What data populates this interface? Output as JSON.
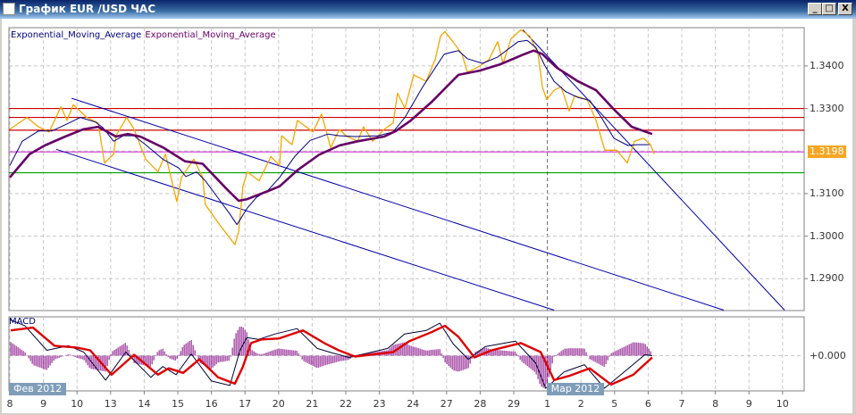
{
  "window": {
    "title": "График EUR /USD  ЧАС",
    "buttons": {
      "minimize": "_",
      "maximize": "□",
      "close": "X"
    }
  },
  "legend": [
    {
      "label": "Exponential_Moving_Average",
      "color": "#000080"
    },
    {
      "label": "Exponential_Moving_Average",
      "color": "#660066"
    }
  ],
  "chart_data": [
    {
      "type": "line",
      "symbol": "EUR /USD",
      "timeframe": "ЧАС",
      "x_ticks": [
        "8",
        "9",
        "10",
        "13",
        "14",
        "15",
        "16",
        "17",
        "20",
        "21",
        "22",
        "23",
        "24",
        "27",
        "28",
        "29",
        "1",
        "2",
        "5",
        "6",
        "7",
        "8",
        "9",
        "10"
      ],
      "month_tags": [
        {
          "label": "Фев 2012",
          "at_tick": 0
        },
        {
          "label": "Мар 2012",
          "at_tick": 16
        }
      ],
      "y_ticks": [
        "1.3400",
        "1.3300",
        "1.3100",
        "1.3000",
        "1.2900"
      ],
      "ylim": [
        1.2825,
        1.349
      ],
      "grid": true,
      "current_price": "1.3198",
      "colors": {
        "price": "#f5a600",
        "ema_fast": "#000080",
        "ema_slow": "#660066",
        "resistance": "#cc0000",
        "support": "#00a000",
        "current": "#cc33cc",
        "trend": "#0000aa"
      },
      "horizontal_lines": [
        {
          "kind": "resistance",
          "price": 1.33
        },
        {
          "kind": "resistance",
          "price": 1.3279
        },
        {
          "kind": "resistance",
          "price": 1.3249
        },
        {
          "kind": "current",
          "price": 1.3198
        },
        {
          "kind": "support",
          "price": 1.3149
        }
      ],
      "trend_lines": [
        {
          "from": [
            1.84,
            1.3324
          ],
          "to": [
            21.25,
            1.2826
          ]
        },
        {
          "from": [
            1.38,
            1.3204
          ],
          "to": [
            16.2,
            1.2826
          ]
        },
        {
          "from": [
            15.27,
            1.3485
          ],
          "to": [
            23.06,
            1.2826
          ]
        }
      ],
      "series": [
        {
          "key": "price",
          "points": [
            [
              0,
              1.3251
            ],
            [
              0.51,
              1.3279
            ],
            [
              0.85,
              1.3257
            ],
            [
              1.17,
              1.3245
            ],
            [
              1.52,
              1.3304
            ],
            [
              1.7,
              1.3272
            ],
            [
              1.89,
              1.3309
            ],
            [
              2.29,
              1.3279
            ],
            [
              2.63,
              1.3266
            ],
            [
              2.82,
              1.3172
            ],
            [
              3.09,
              1.3193
            ],
            [
              3.16,
              1.3236
            ],
            [
              3.48,
              1.3279
            ],
            [
              3.7,
              1.3251
            ],
            [
              4.04,
              1.3181
            ],
            [
              4.41,
              1.3151
            ],
            [
              4.63,
              1.3193
            ],
            [
              4.97,
              1.3081
            ],
            [
              5.11,
              1.3138
            ],
            [
              5.48,
              1.3181
            ],
            [
              5.74,
              1.3138
            ],
            [
              5.82,
              1.3074
            ],
            [
              6.28,
              1.3023
            ],
            [
              6.7,
              1.298
            ],
            [
              6.81,
              1.301
            ],
            [
              6.94,
              1.3117
            ],
            [
              7.07,
              1.3151
            ],
            [
              7.42,
              1.313
            ],
            [
              7.77,
              1.3187
            ],
            [
              8.03,
              1.3166
            ],
            [
              8.09,
              1.3236
            ],
            [
              8.4,
              1.3215
            ],
            [
              8.56,
              1.3272
            ],
            [
              9.02,
              1.3245
            ],
            [
              9.28,
              1.3287
            ],
            [
              9.55,
              1.3208
            ],
            [
              9.81,
              1.3251
            ],
            [
              10.0,
              1.3236
            ],
            [
              10.35,
              1.3223
            ],
            [
              10.53,
              1.3257
            ],
            [
              10.8,
              1.3223
            ],
            [
              11.14,
              1.3251
            ],
            [
              11.41,
              1.3266
            ],
            [
              11.54,
              1.3336
            ],
            [
              11.76,
              1.33
            ],
            [
              12.02,
              1.3379
            ],
            [
              12.39,
              1.3364
            ],
            [
              12.66,
              1.3415
            ],
            [
              12.82,
              1.347
            ],
            [
              12.95,
              1.3481
            ],
            [
              13.19,
              1.3457
            ],
            [
              13.46,
              1.3428
            ],
            [
              13.62,
              1.3385
            ],
            [
              13.99,
              1.34
            ],
            [
              14.26,
              1.3415
            ],
            [
              14.52,
              1.3457
            ],
            [
              14.68,
              1.3406
            ],
            [
              14.92,
              1.3464
            ],
            [
              15.21,
              1.3485
            ],
            [
              15.48,
              1.347
            ],
            [
              15.72,
              1.3428
            ],
            [
              15.85,
              1.3351
            ],
            [
              15.98,
              1.3321
            ],
            [
              16.2,
              1.3343
            ],
            [
              16.41,
              1.3351
            ],
            [
              16.65,
              1.3294
            ],
            [
              16.81,
              1.333
            ],
            [
              17.18,
              1.3321
            ],
            [
              17.45,
              1.3272
            ],
            [
              17.71,
              1.3202
            ],
            [
              18.06,
              1.3202
            ],
            [
              18.38,
              1.3172
            ],
            [
              18.59,
              1.3223
            ],
            [
              18.86,
              1.323
            ],
            [
              19.07,
              1.3215
            ],
            [
              19.18,
              1.3193
            ]
          ]
        },
        {
          "key": "ema_fast",
          "points": [
            [
              0,
              1.3166
            ],
            [
              0.37,
              1.3223
            ],
            [
              0.85,
              1.3247
            ],
            [
              1.25,
              1.3247
            ],
            [
              1.76,
              1.3266
            ],
            [
              2.1,
              1.3279
            ],
            [
              2.55,
              1.3268
            ],
            [
              2.77,
              1.3255
            ],
            [
              3.09,
              1.3223
            ],
            [
              3.38,
              1.3236
            ],
            [
              3.7,
              1.3236
            ],
            [
              4.04,
              1.3215
            ],
            [
              4.55,
              1.3181
            ],
            [
              5.03,
              1.316
            ],
            [
              5.24,
              1.314
            ],
            [
              5.56,
              1.3151
            ],
            [
              5.82,
              1.313
            ],
            [
              6.28,
              1.3081
            ],
            [
              6.54,
              1.3053
            ],
            [
              6.76,
              1.3027
            ],
            [
              7.07,
              1.3066
            ],
            [
              7.34,
              1.3091
            ],
            [
              7.69,
              1.3108
            ],
            [
              8.03,
              1.3138
            ],
            [
              8.48,
              1.3187
            ],
            [
              8.94,
              1.3225
            ],
            [
              9.47,
              1.324
            ],
            [
              9.81,
              1.3236
            ],
            [
              10.27,
              1.3234
            ],
            [
              10.96,
              1.3236
            ],
            [
              11.41,
              1.3245
            ],
            [
              11.76,
              1.3279
            ],
            [
              12.29,
              1.3351
            ],
            [
              12.93,
              1.3428
            ],
            [
              13.35,
              1.3436
            ],
            [
              13.62,
              1.3417
            ],
            [
              14.07,
              1.3406
            ],
            [
              14.52,
              1.3421
            ],
            [
              15.13,
              1.3457
            ],
            [
              15.4,
              1.346
            ],
            [
              15.66,
              1.3443
            ],
            [
              15.93,
              1.34
            ],
            [
              16.2,
              1.3364
            ],
            [
              16.54,
              1.334
            ],
            [
              16.91,
              1.3326
            ],
            [
              17.26,
              1.3319
            ],
            [
              17.61,
              1.3279
            ],
            [
              17.98,
              1.323
            ],
            [
              18.4,
              1.3213
            ],
            [
              18.67,
              1.3215
            ],
            [
              19.04,
              1.3215
            ]
          ]
        },
        {
          "key": "ema_slow",
          "points": [
            [
              0,
              1.3138
            ],
            [
              0.59,
              1.3193
            ],
            [
              1.04,
              1.3213
            ],
            [
              1.65,
              1.3234
            ],
            [
              2.18,
              1.3251
            ],
            [
              2.63,
              1.3257
            ],
            [
              3.16,
              1.3234
            ],
            [
              3.51,
              1.324
            ],
            [
              3.88,
              1.3234
            ],
            [
              4.57,
              1.3208
            ],
            [
              5.21,
              1.3176
            ],
            [
              5.74,
              1.317
            ],
            [
              6.44,
              1.3112
            ],
            [
              6.81,
              1.3083
            ],
            [
              7.07,
              1.3087
            ],
            [
              7.69,
              1.3106
            ],
            [
              8.03,
              1.3117
            ],
            [
              8.56,
              1.3155
            ],
            [
              9.2,
              1.3191
            ],
            [
              9.81,
              1.3213
            ],
            [
              10.35,
              1.3223
            ],
            [
              11.14,
              1.3234
            ],
            [
              11.49,
              1.3247
            ],
            [
              11.94,
              1.3272
            ],
            [
              12.55,
              1.3315
            ],
            [
              13.35,
              1.3379
            ],
            [
              13.99,
              1.3389
            ],
            [
              14.6,
              1.3404
            ],
            [
              15.32,
              1.3428
            ],
            [
              15.59,
              1.3436
            ],
            [
              15.85,
              1.3428
            ],
            [
              16.28,
              1.3396
            ],
            [
              16.91,
              1.3364
            ],
            [
              17.45,
              1.3343
            ],
            [
              17.98,
              1.3298
            ],
            [
              18.51,
              1.3257
            ],
            [
              19.12,
              1.324
            ]
          ]
        }
      ]
    },
    {
      "type": "line",
      "title": "MACD",
      "y_ticks": [
        "+0.000"
      ],
      "ylim": [
        -0.0039,
        0.0043
      ],
      "colors": {
        "macd": "#000033",
        "signal": "#dd0000",
        "histogram": "#800080"
      },
      "series": [
        {
          "key": "signal",
          "points": [
            [
              0.03,
              0.0028
            ],
            [
              0.69,
              0.0031
            ],
            [
              1.33,
              0.0011
            ],
            [
              1.99,
              0.0009
            ],
            [
              2.39,
              0.0006
            ],
            [
              3.03,
              -0.0021
            ],
            [
              3.7,
              0.0001
            ],
            [
              4.41,
              -0.0021
            ],
            [
              4.73,
              -0.0014
            ],
            [
              5.16,
              -0.0019
            ],
            [
              5.64,
              -0.0004
            ],
            [
              6.2,
              -0.0024
            ],
            [
              6.7,
              -0.0031
            ],
            [
              6.94,
              -0.0012
            ],
            [
              7.18,
              0.0014
            ],
            [
              7.5,
              0.0018
            ],
            [
              8.01,
              0.0019
            ],
            [
              8.72,
              0.0028
            ],
            [
              9.36,
              0.0014
            ],
            [
              9.79,
              0.0006
            ],
            [
              10.27,
              -0.0001
            ],
            [
              11.41,
              0.0004
            ],
            [
              11.89,
              0.0016
            ],
            [
              12.55,
              0.0026
            ],
            [
              12.95,
              0.0033
            ],
            [
              13.35,
              0.0021
            ],
            [
              13.83,
              -0.0002
            ],
            [
              14.34,
              0.0006
            ],
            [
              15.21,
              0.0014
            ],
            [
              15.8,
              0.0004
            ],
            [
              16.2,
              -0.0027
            ],
            [
              16.68,
              -0.0022
            ],
            [
              17.26,
              -0.0014
            ],
            [
              17.9,
              -0.0032
            ],
            [
              18.56,
              -0.0021
            ],
            [
              19.12,
              -0.0002
            ]
          ]
        },
        {
          "key": "macd",
          "points": [
            [
              0,
              0.004
            ],
            [
              0.45,
              0.0033
            ],
            [
              1.1,
              0.0006
            ],
            [
              1.75,
              0.0011
            ],
            [
              2.2,
              0.0004
            ],
            [
              2.85,
              -0.0027
            ],
            [
              3.45,
              0.0004
            ],
            [
              4.2,
              -0.0024
            ],
            [
              4.55,
              -0.0012
            ],
            [
              4.95,
              -0.0021
            ],
            [
              5.4,
              0.0002
            ],
            [
              6.0,
              -0.0028
            ],
            [
              6.55,
              -0.0033
            ],
            [
              6.85,
              0.0006
            ],
            [
              7.05,
              0.002
            ],
            [
              7.4,
              0.0018
            ],
            [
              7.9,
              0.0024
            ],
            [
              8.55,
              0.003
            ],
            [
              9.15,
              0.0008
            ],
            [
              9.6,
              0.0003
            ],
            [
              10.1,
              -0.0002
            ],
            [
              11.25,
              0.0008
            ],
            [
              11.75,
              0.0024
            ],
            [
              12.4,
              0.0028
            ],
            [
              12.8,
              0.0036
            ],
            [
              13.2,
              0.0013
            ],
            [
              13.65,
              -0.0004
            ],
            [
              14.15,
              0.001
            ],
            [
              15.05,
              0.0016
            ],
            [
              15.65,
              -0.0008
            ],
            [
              15.95,
              -0.0036
            ],
            [
              16.5,
              -0.0018
            ],
            [
              17.1,
              -0.001
            ],
            [
              17.7,
              -0.0036
            ],
            [
              18.35,
              -0.0016
            ],
            [
              18.9,
              0.0001
            ],
            [
              19.12,
              0.0
            ]
          ]
        }
      ]
    }
  ]
}
